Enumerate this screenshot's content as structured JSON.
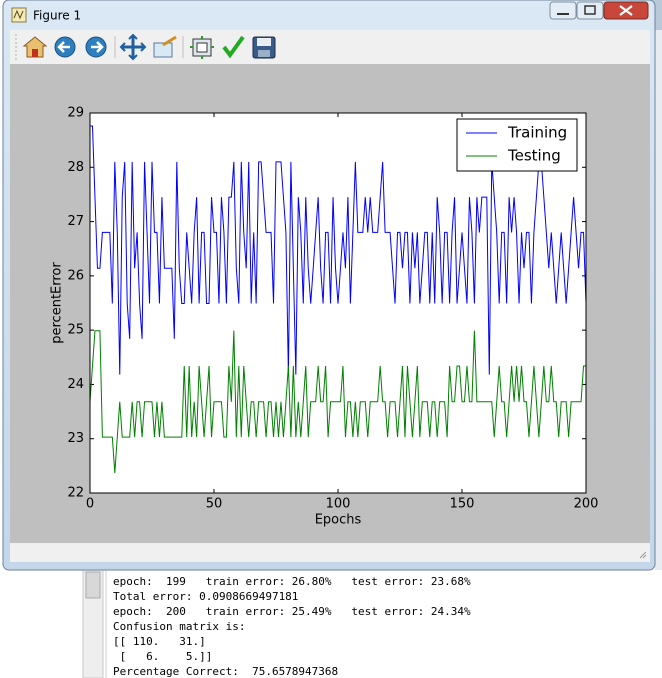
{
  "window": {
    "title": "Figure 1"
  },
  "chart_data": {
    "type": "line",
    "xlabel": "Epochs",
    "ylabel": "percentError",
    "x": [
      0,
      1,
      2,
      3,
      4,
      5,
      6,
      7,
      8,
      9,
      10,
      11,
      12,
      13,
      14,
      15,
      16,
      17,
      18,
      19,
      20,
      21,
      22,
      23,
      24,
      25,
      26,
      27,
      28,
      29,
      30,
      31,
      32,
      33,
      34,
      35,
      36,
      37,
      38,
      39,
      40,
      41,
      42,
      43,
      44,
      45,
      46,
      47,
      48,
      49,
      50,
      51,
      52,
      53,
      54,
      55,
      56,
      57,
      58,
      59,
      60,
      61,
      62,
      63,
      64,
      65,
      66,
      67,
      68,
      69,
      70,
      71,
      72,
      73,
      74,
      75,
      76,
      77,
      78,
      79,
      80,
      81,
      82,
      83,
      84,
      85,
      86,
      87,
      88,
      89,
      90,
      91,
      92,
      93,
      94,
      95,
      96,
      97,
      98,
      99,
      100,
      101,
      102,
      103,
      104,
      105,
      106,
      107,
      108,
      109,
      110,
      111,
      112,
      113,
      114,
      115,
      116,
      117,
      118,
      119,
      120,
      121,
      122,
      123,
      124,
      125,
      126,
      127,
      128,
      129,
      130,
      131,
      132,
      133,
      134,
      135,
      136,
      137,
      138,
      139,
      140,
      141,
      142,
      143,
      144,
      145,
      146,
      147,
      148,
      149,
      150,
      151,
      152,
      153,
      154,
      155,
      156,
      157,
      158,
      159,
      160,
      161,
      162,
      163,
      164,
      165,
      166,
      167,
      168,
      169,
      170,
      171,
      172,
      173,
      174,
      175,
      176,
      177,
      178,
      179,
      180,
      181,
      182,
      183,
      184,
      185,
      186,
      187,
      188,
      189,
      190,
      191,
      192,
      193,
      194,
      195,
      196,
      197,
      198,
      199,
      200
    ],
    "series": [
      {
        "name": "Training",
        "color": "#0000ff",
        "values": [
          28.76,
          28.76,
          27.45,
          26.14,
          26.14,
          26.8,
          26.8,
          26.8,
          26.8,
          25.49,
          28.1,
          26.8,
          24.18,
          27.45,
          28.1,
          25.49,
          24.84,
          28.1,
          26.14,
          26.8,
          25.49,
          24.84,
          28.1,
          26.8,
          25.49,
          28.1,
          26.8,
          26.8,
          25.49,
          27.45,
          26.14,
          26.14,
          26.14,
          26.14,
          24.84,
          28.1,
          26.14,
          25.49,
          25.49,
          26.8,
          26.14,
          25.49,
          26.8,
          27.45,
          25.49,
          26.8,
          26.8,
          25.49,
          25.49,
          27.45,
          26.8,
          26.8,
          25.49,
          27.45,
          26.8,
          25.49,
          27.45,
          27.45,
          28.1,
          26.14,
          25.49,
          28.1,
          26.8,
          26.14,
          28.1,
          25.49,
          26.8,
          25.49,
          28.1,
          28.1,
          27.45,
          26.8,
          26.8,
          26.8,
          25.49,
          28.1,
          28.1,
          28.1,
          27.45,
          26.8,
          24.18,
          28.1,
          26.14,
          24.18,
          27.45,
          26.8,
          25.49,
          27.45,
          26.14,
          25.49,
          26.14,
          26.8,
          27.45,
          26.14,
          25.49,
          26.8,
          26.8,
          25.49,
          27.45,
          26.14,
          25.49,
          26.14,
          26.8,
          26.14,
          27.45,
          25.49,
          26.8,
          28.1,
          26.8,
          26.8,
          26.8,
          27.45,
          26.8,
          27.45,
          26.8,
          26.8,
          26.8,
          27.45,
          28.1,
          26.8,
          26.8,
          26.8,
          26.14,
          25.49,
          26.8,
          26.8,
          26.14,
          26.8,
          26.8,
          25.49,
          26.8,
          26.14,
          26.8,
          25.49,
          26.14,
          26.8,
          26.8,
          25.49,
          26.8,
          25.49,
          27.45,
          26.8,
          25.49,
          26.8,
          26.8,
          25.49,
          26.8,
          27.45,
          25.49,
          26.14,
          26.8,
          26.14,
          25.49,
          27.45,
          26.8,
          25.49,
          27.45,
          26.8,
          27.45,
          27.45,
          27.45,
          24.18,
          28.1,
          27.45,
          26.8,
          25.49,
          26.8,
          26.8,
          25.49,
          27.45,
          26.8,
          27.45,
          26.8,
          25.49,
          26.8,
          26.14,
          26.8,
          26.8,
          25.49,
          26.8,
          27.45,
          28.1,
          28.1,
          27.45,
          26.8,
          26.14,
          26.8,
          26.14,
          25.49,
          26.14,
          26.8,
          26.14,
          25.49,
          26.14,
          26.8,
          27.45,
          26.8,
          26.14,
          26.8,
          26.8,
          25.49
        ]
      },
      {
        "name": "Testing",
        "color": "#008000",
        "values": [
          23.68,
          24.34,
          24.99,
          24.99,
          24.99,
          23.03,
          23.03,
          23.03,
          23.03,
          23.03,
          22.37,
          23.03,
          23.68,
          23.03,
          23.03,
          23.03,
          23.03,
          23.68,
          23.03,
          23.68,
          23.68,
          23.03,
          23.68,
          23.68,
          23.68,
          23.68,
          23.03,
          23.68,
          23.03,
          23.68,
          23.03,
          23.03,
          23.03,
          23.03,
          23.03,
          23.03,
          23.03,
          23.03,
          24.34,
          23.03,
          24.34,
          23.03,
          23.68,
          23.03,
          24.34,
          23.68,
          23.03,
          23.68,
          24.34,
          23.03,
          23.68,
          23.68,
          23.68,
          23.68,
          23.03,
          23.03,
          24.34,
          23.68,
          24.99,
          23.03,
          24.34,
          23.03,
          24.34,
          23.68,
          23.03,
          23.68,
          23.68,
          23.03,
          23.68,
          23.68,
          23.68,
          23.03,
          23.68,
          23.68,
          23.03,
          23.68,
          23.03,
          23.68,
          23.03,
          23.68,
          24.34,
          23.03,
          24.34,
          23.03,
          23.68,
          23.03,
          23.68,
          24.34,
          23.03,
          23.68,
          23.68,
          23.68,
          24.34,
          23.68,
          23.68,
          24.34,
          23.03,
          23.68,
          23.68,
          23.68,
          23.68,
          23.68,
          24.34,
          23.03,
          23.68,
          23.68,
          23.03,
          23.68,
          23.03,
          23.68,
          23.68,
          23.68,
          23.03,
          23.68,
          23.68,
          23.68,
          23.68,
          24.34,
          23.68,
          23.68,
          23.03,
          23.68,
          23.68,
          23.68,
          23.03,
          23.68,
          24.34,
          23.03,
          24.34,
          23.68,
          23.03,
          23.68,
          24.34,
          23.03,
          23.68,
          23.68,
          23.68,
          23.03,
          23.68,
          23.68,
          23.03,
          23.68,
          23.68,
          23.68,
          23.03,
          24.34,
          23.68,
          23.68,
          24.34,
          24.34,
          23.68,
          23.68,
          24.34,
          23.68,
          23.68,
          24.99,
          23.68,
          23.68,
          23.68,
          23.68,
          23.68,
          23.68,
          23.68,
          23.03,
          23.68,
          24.34,
          23.68,
          23.68,
          23.03,
          23.68,
          24.34,
          23.68,
          24.34,
          23.68,
          24.34,
          23.68,
          23.68,
          23.03,
          23.68,
          24.34,
          23.68,
          23.03,
          23.68,
          24.34,
          23.68,
          23.68,
          24.34,
          23.68,
          23.68,
          23.03,
          23.68,
          23.68,
          23.68,
          23.03,
          23.68,
          23.68,
          23.68,
          23.68,
          23.68,
          24.34,
          24.34
        ]
      }
    ],
    "xlim": [
      0,
      200
    ],
    "xticks": [
      0,
      50,
      100,
      150,
      200
    ],
    "ylim": [
      22,
      29
    ],
    "yticks": [
      22,
      23,
      24,
      25,
      26,
      27,
      28,
      29
    ],
    "legend": "upper right"
  },
  "console": {
    "lines": [
      "epoch:  199   train error: 26.80%   test error: 23.68%",
      "Total error: 0.0908669497181",
      "epoch:  200   train error: 25.49%   test error: 24.34%",
      "Confusion matrix is:",
      "[[ 110.   31.]",
      " [   6.    5.]]",
      "Percentage Correct:  75.6578947368"
    ]
  }
}
